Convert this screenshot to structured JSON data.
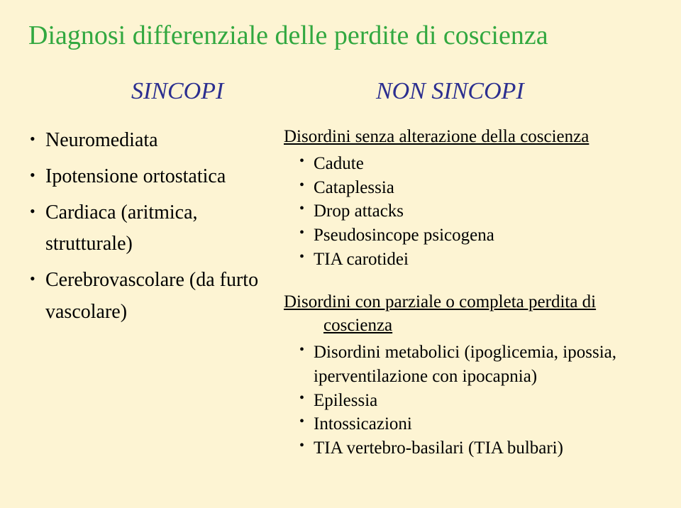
{
  "background_color": "#fdf4d3",
  "title": {
    "text": "Diagnosi differenziale delle perdite di coscienza",
    "color": "#32a840",
    "font_size_pt": 38
  },
  "left": {
    "heading": {
      "text": "SINCOPI",
      "color": "#2c2f90",
      "font_size_pt": 34,
      "italic": true
    },
    "items": [
      "Neuromediata",
      "Ipotensione ortostatica",
      "Cardiaca (aritmica, strutturale)",
      "Cerebrovascolare (da furto vascolare)"
    ],
    "item_font_size_pt": 28
  },
  "right": {
    "heading": {
      "text": "NON SINCOPI",
      "color": "#2c2f90",
      "font_size_pt": 34,
      "italic": true
    },
    "group1": {
      "head": "Disordini senza alterazione della coscienza",
      "items": [
        "Cadute",
        "Cataplessia",
        "Drop attacks",
        "Pseudosincope psicogena",
        "TIA carotidei"
      ]
    },
    "group2": {
      "head_line1": "Disordini con parziale o completa perdita di",
      "head_line2": "coscienza",
      "items": [
        "Disordini metabolici (ipoglicemia, ipossia, iperventilazione con ipocapnia)",
        "Epilessia",
        "Intossicazioni",
        "TIA vertebro-basilari (TIA bulbari)"
      ]
    },
    "item_font_size_pt": 25
  }
}
